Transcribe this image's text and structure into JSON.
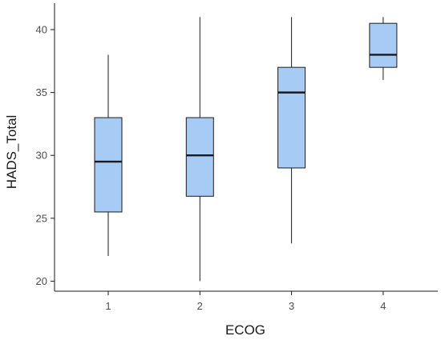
{
  "chart_data": {
    "type": "boxplot",
    "xlabel": "ECOG",
    "ylabel": "HADS_Total",
    "ylim": [
      19.2,
      42.1
    ],
    "yticks": [
      20,
      25,
      30,
      35,
      40
    ],
    "grid": false,
    "legend": "none",
    "box_color": "#a6cbf5",
    "line_color": "#1a1a1a",
    "categories": [
      "1",
      "2",
      "3",
      "4"
    ],
    "boxes": [
      {
        "category": "1",
        "min": 22,
        "q1": 25.5,
        "median": 29.5,
        "q3": 33,
        "max": 38
      },
      {
        "category": "2",
        "min": 20,
        "q1": 26.75,
        "median": 30,
        "q3": 33,
        "max": 41
      },
      {
        "category": "3",
        "min": 23,
        "q1": 29,
        "median": 35,
        "q3": 37,
        "max": 41
      },
      {
        "category": "4",
        "min": 36,
        "q1": 37,
        "median": 38,
        "q3": 40.5,
        "max": 41
      }
    ]
  }
}
